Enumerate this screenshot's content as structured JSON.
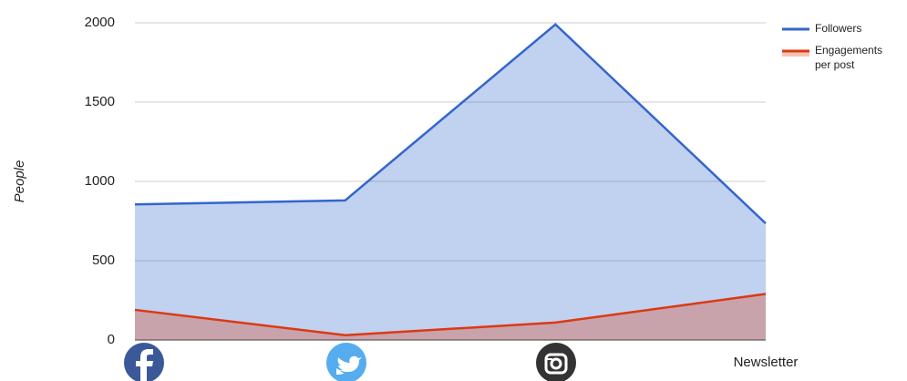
{
  "chart_data": {
    "type": "area",
    "y_label": "People",
    "categories": [
      null,
      null,
      null,
      "Newsletter"
    ],
    "series": [
      {
        "name": "Followers",
        "color": "#3366cc",
        "values": [
          855,
          880,
          1990,
          735
        ]
      },
      {
        "name": "Engagements per post",
        "color": "#dc3912",
        "values": [
          190,
          30,
          110,
          290
        ]
      }
    ],
    "ylim": [
      0,
      2000
    ],
    "yticks": [
      0,
      500,
      1000,
      1500,
      2000
    ],
    "grid": true,
    "legend": "right"
  }
}
